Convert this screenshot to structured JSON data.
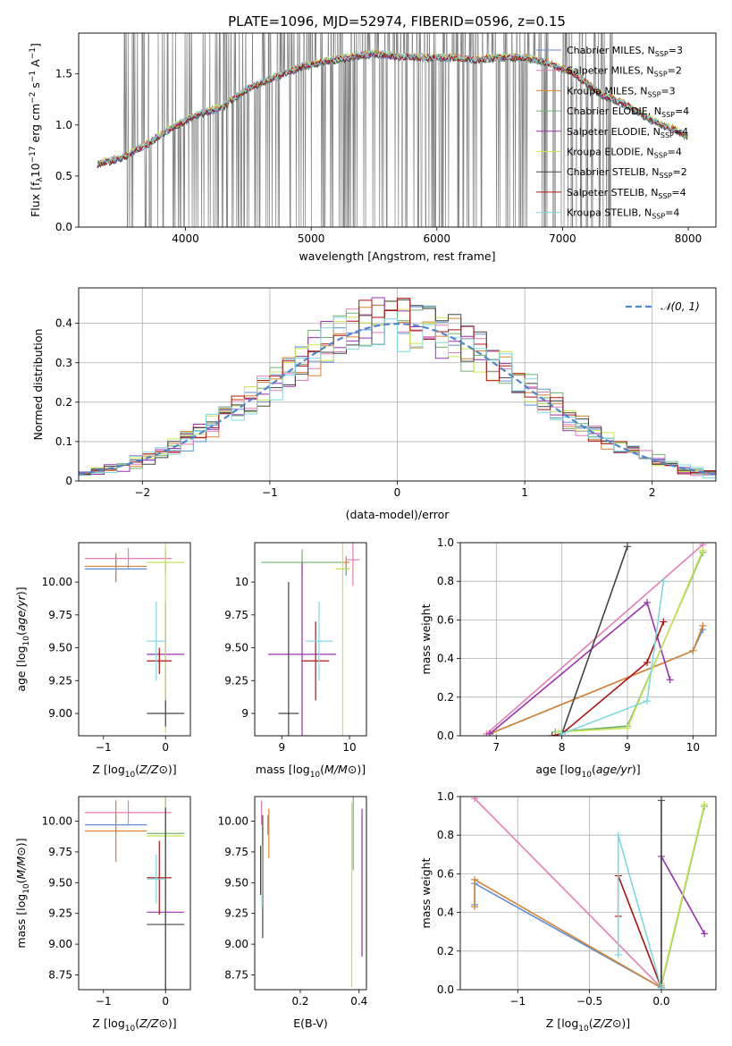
{
  "title": "PLATE=1096, MJD=52974, FIBERID=0596, z=0.15",
  "colors": {
    "series": [
      "#5b8fd8",
      "#e47db7",
      "#d98430",
      "#6fb06f",
      "#9b30b0",
      "#c7e64c",
      "#444444",
      "#b01010",
      "#7ed8e0"
    ],
    "data_gray": "#808080",
    "gaussian": "#4f86cf"
  },
  "chart_data": [
    {
      "id": "spectrum",
      "type": "line",
      "xlabel": "wavelength [Angstrom, rest frame]",
      "ylabel_parts": {
        "base": "Flux [f",
        "sub": "λ",
        "mid": "10",
        "sup1": "−17",
        "rest": " erg cm",
        "sup2": "−2",
        "rest2": " s",
        "sup3": "−1",
        "rest3": " A",
        "sup4": "−1",
        "end": "]"
      },
      "xlim": [
        3150,
        8220
      ],
      "ylim": [
        0,
        1.9
      ],
      "xticks": [
        4000,
        5000,
        6000,
        7000,
        8000
      ],
      "yticks": [
        0.0,
        0.5,
        1.0,
        1.5
      ],
      "legend": [
        {
          "label": "Chabrier MILES, N",
          "sub": "SSP",
          "tail": "=3"
        },
        {
          "label": "Salpeter MILES, N",
          "sub": "SSP",
          "tail": "=2"
        },
        {
          "label": "Kroupa MILES, N",
          "sub": "SSP",
          "tail": "=3"
        },
        {
          "label": "Chabrier ELODIE, N",
          "sub": "SSP",
          "tail": "=4"
        },
        {
          "label": "Salpeter ELODIE, N",
          "sub": "SSP",
          "tail": "=4"
        },
        {
          "label": "Kroupa ELODIE, N",
          "sub": "SSP",
          "tail": "=4"
        },
        {
          "label": "Chabrier STELIB, N",
          "sub": "SSP",
          "tail": "=2"
        },
        {
          "label": "Salpeter STELIB, N",
          "sub": "SSP",
          "tail": "=4"
        },
        {
          "label": "Kroupa STELIB, N",
          "sub": "SSP",
          "tail": "=4"
        }
      ],
      "legend_position": "upper right",
      "model_curve": {
        "x": [
          3300,
          3500,
          3700,
          3900,
          4100,
          4300,
          4500,
          4700,
          4900,
          5100,
          5300,
          5500,
          5700,
          5900,
          6100,
          6300,
          6500,
          6700,
          6900,
          7100,
          7300,
          7500,
          7700,
          7900,
          8000
        ],
        "y": [
          0.62,
          0.68,
          0.82,
          0.98,
          1.1,
          1.18,
          1.36,
          1.46,
          1.56,
          1.62,
          1.66,
          1.7,
          1.67,
          1.66,
          1.66,
          1.64,
          1.66,
          1.66,
          1.6,
          1.5,
          1.3,
          1.2,
          1.05,
          0.95,
          0.88
        ]
      }
    },
    {
      "id": "residuals",
      "type": "histogram",
      "xlabel": "(data-model)/error",
      "ylabel": "Normed distribution",
      "xlim": [
        -2.5,
        2.5
      ],
      "ylim": [
        0,
        0.49
      ],
      "xticks": [
        -2,
        -1,
        0,
        1,
        2
      ],
      "yticks": [
        0.0,
        0.1,
        0.2,
        0.3,
        0.4
      ],
      "legend": [
        {
          "label": "𝒩(0, 1)"
        }
      ],
      "legend_position": "upper right",
      "bin_width": 0.1,
      "grid": true
    },
    {
      "id": "age-vs-Z",
      "type": "errorbar",
      "xlabel": "Z [log10(Z/Z⊙)]",
      "ylabel": "age  [log10(age/yr)]",
      "xlim": [
        -1.4,
        0.4
      ],
      "ylim": [
        8.83,
        10.3
      ],
      "xticks": [
        -1,
        0
      ],
      "yticks": [
        9.0,
        9.25,
        9.5,
        9.75,
        10.0
      ],
      "points": [
        {
          "s": 0,
          "x": -0.8,
          "y": 10.1,
          "xerr": 0.5,
          "yerr": 0.1
        },
        {
          "s": 1,
          "x": -0.6,
          "y": 10.18,
          "xerr": 0.7,
          "yerr": 0.08
        },
        {
          "s": 2,
          "x": -0.8,
          "y": 10.12,
          "xerr": 0.5,
          "yerr": 0.1
        },
        {
          "s": 3,
          "x": 0.0,
          "y": 10.15,
          "xerr": 0.3,
          "yerr": 0.1
        },
        {
          "s": 4,
          "x": 0.0,
          "y": 9.45,
          "xerr": 0.3,
          "yerr": 0.4
        },
        {
          "s": 5,
          "x": 0.0,
          "y": 10.15,
          "xerr": 0.3,
          "yerr": 1.3
        },
        {
          "s": 6,
          "x": 0.0,
          "y": 9.0,
          "xerr": 0.3,
          "yerr": 0.1
        },
        {
          "s": 7,
          "x": -0.1,
          "y": 9.4,
          "xerr": 0.2,
          "yerr": 0.1
        },
        {
          "s": 8,
          "x": -0.15,
          "y": 9.55,
          "xerr": 0.15,
          "yerr": 0.3
        }
      ]
    },
    {
      "id": "age-vs-mass",
      "type": "errorbar",
      "xlabel": "mass [log10(M/M⊙)]",
      "ylabel": "",
      "xlim": [
        8.6,
        10.25
      ],
      "ylim": [
        8.83,
        10.3
      ],
      "xticks": [
        9,
        10
      ],
      "yticks": [
        9.0,
        9.25,
        9.5,
        9.75,
        10.0
      ],
      "points": [
        {
          "s": 0,
          "x": 9.95,
          "y": 10.1,
          "xerr": 0.05,
          "yerr": 0.05
        },
        {
          "s": 1,
          "x": 10.05,
          "y": 10.17,
          "xerr": 0.1,
          "yerr": 0.2
        },
        {
          "s": 2,
          "x": 9.95,
          "y": 10.15,
          "xerr": 0.05,
          "yerr": 0.05
        },
        {
          "s": 3,
          "x": 9.3,
          "y": 10.15,
          "xerr": 0.6,
          "yerr": 0.1
        },
        {
          "s": 4,
          "x": 9.3,
          "y": 9.45,
          "xerr": 0.5,
          "yerr": 0.7
        },
        {
          "s": 5,
          "x": 9.9,
          "y": 10.1,
          "xerr": 0.1,
          "yerr": 1.3
        },
        {
          "s": 6,
          "x": 9.1,
          "y": 9.0,
          "xerr": 0.15,
          "yerr": 1.0
        },
        {
          "s": 7,
          "x": 9.5,
          "y": 9.4,
          "xerr": 0.2,
          "yerr": 0.3
        },
        {
          "s": 8,
          "x": 9.55,
          "y": 9.55,
          "xerr": 0.2,
          "yerr": 0.3
        }
      ]
    },
    {
      "id": "mass-weight-vs-age",
      "type": "line",
      "xlabel": "age  [log10(age/yr)]",
      "ylabel": "mass weight",
      "xlim": [
        6.45,
        10.35
      ],
      "ylim": [
        0,
        1.0
      ],
      "xticks": [
        7,
        8,
        9,
        10
      ],
      "yticks": [
        0.0,
        0.2,
        0.4,
        0.6,
        0.8,
        1.0
      ],
      "grid": true,
      "series": [
        {
          "s": 0,
          "x": [
            6.9,
            10.0,
            10.15
          ],
          "y": [
            0.01,
            0.44,
            0.55
          ]
        },
        {
          "s": 1,
          "x": [
            6.85,
            10.15
          ],
          "y": [
            0.01,
            0.99
          ]
        },
        {
          "s": 2,
          "x": [
            6.9,
            10.0,
            10.15
          ],
          "y": [
            0.01,
            0.44,
            0.57
          ]
        },
        {
          "s": 3,
          "x": [
            7.9,
            9.0,
            10.15
          ],
          "y": [
            0.02,
            0.05,
            0.95
          ]
        },
        {
          "s": 4,
          "x": [
            6.9,
            9.3,
            9.65
          ],
          "y": [
            0.01,
            0.69,
            0.29
          ]
        },
        {
          "s": 5,
          "x": [
            7.95,
            9.0,
            10.15
          ],
          "y": [
            0.02,
            0.04,
            0.96
          ]
        },
        {
          "s": 6,
          "x": [
            8.0,
            9.0
          ],
          "y": [
            0.01,
            0.98
          ]
        },
        {
          "s": 7,
          "x": [
            7.85,
            8.0,
            9.3,
            9.55
          ],
          "y": [
            0.0,
            0.01,
            0.38,
            0.59
          ]
        },
        {
          "s": 8,
          "x": [
            8.0,
            9.3,
            9.55
          ],
          "y": [
            0.01,
            0.18,
            0.8
          ]
        }
      ]
    },
    {
      "id": "mass-vs-Z",
      "type": "errorbar",
      "xlabel": "Z [log10(Z/Z⊙)]",
      "ylabel": "mass [log10(M/M⊙)]",
      "xlim": [
        -1.4,
        0.4
      ],
      "ylim": [
        8.63,
        10.2
      ],
      "xticks": [
        -1,
        0
      ],
      "yticks": [
        8.75,
        9.0,
        9.25,
        9.5,
        9.75,
        10.0
      ],
      "points": [
        {
          "s": 0,
          "x": -0.8,
          "y": 9.97,
          "xerr": 0.5,
          "yerr": 0.08
        },
        {
          "s": 1,
          "x": -0.6,
          "y": 10.07,
          "xerr": 0.7,
          "yerr": 0.1
        },
        {
          "s": 2,
          "x": -0.8,
          "y": 9.92,
          "xerr": 0.5,
          "yerr": 0.25
        },
        {
          "s": 3,
          "x": 0.0,
          "y": 9.9,
          "xerr": 0.3,
          "yerr": 0.3
        },
        {
          "s": 4,
          "x": 0.0,
          "y": 9.26,
          "xerr": 0.3,
          "yerr": 0.95
        },
        {
          "s": 5,
          "x": 0.0,
          "y": 9.88,
          "xerr": 0.3,
          "yerr": 1.2
        },
        {
          "s": 6,
          "x": 0.0,
          "y": 9.16,
          "xerr": 0.3,
          "yerr": 0.95
        },
        {
          "s": 7,
          "x": -0.1,
          "y": 9.54,
          "xerr": 0.2,
          "yerr": 0.3
        },
        {
          "s": 8,
          "x": -0.15,
          "y": 9.53,
          "xerr": 0.15,
          "yerr": 0.2
        }
      ]
    },
    {
      "id": "mass-vs-EBV",
      "type": "errorbar",
      "xlabel": "E(B-V)",
      "ylabel": "",
      "xlim": [
        0.045,
        0.425
      ],
      "ylim": [
        8.63,
        10.2
      ],
      "xticks": [
        0.2,
        0.4
      ],
      "yticks": [
        8.75,
        9.0,
        9.25,
        9.5,
        9.75,
        10.0
      ],
      "points": [
        {
          "s": 0,
          "x": 0.09,
          "y": 9.97,
          "xerr": 0.0,
          "yerr": 0.08
        },
        {
          "s": 1,
          "x": 0.068,
          "y": 10.07,
          "xerr": 0.0,
          "yerr": 0.1
        },
        {
          "s": 2,
          "x": 0.093,
          "y": 9.9,
          "xerr": 0.0,
          "yerr": 0.2
        },
        {
          "s": 3,
          "x": 0.38,
          "y": 9.9,
          "xerr": 0.0,
          "yerr": 0.3
        },
        {
          "s": 4,
          "x": 0.41,
          "y": 9.5,
          "xerr": 0.0,
          "yerr": 0.6
        },
        {
          "s": 5,
          "x": 0.375,
          "y": 9.4,
          "xerr": 0.0,
          "yerr": 0.75
        },
        {
          "s": 6,
          "x": 0.072,
          "y": 9.55,
          "xerr": 0.0,
          "yerr": 0.5
        },
        {
          "s": 7,
          "x": 0.065,
          "y": 9.6,
          "xerr": 0.0,
          "yerr": 0.2
        },
        {
          "s": 8,
          "x": 0.07,
          "y": 9.55,
          "xerr": 0.0,
          "yerr": 0.25
        }
      ]
    },
    {
      "id": "mass-weight-vs-Z",
      "type": "line",
      "xlabel": "Z [log10(Z/Z⊙)]",
      "ylabel": "mass weight",
      "xlim": [
        -1.4,
        0.38
      ],
      "ylim": [
        0,
        1.0
      ],
      "xticks": [
        -1.0,
        -0.5,
        0.0
      ],
      "yticks": [
        0.0,
        0.2,
        0.4,
        0.6,
        0.8,
        1.0
      ],
      "grid": true,
      "series": [
        {
          "s": 0,
          "x": [
            -1.3,
            -1.3,
            0.0
          ],
          "y": [
            0.44,
            0.55,
            0.01
          ]
        },
        {
          "s": 1,
          "x": [
            -1.3,
            0.0
          ],
          "y": [
            0.99,
            0.01
          ]
        },
        {
          "s": 2,
          "x": [
            -1.3,
            -1.3,
            0.0
          ],
          "y": [
            0.43,
            0.57,
            0.01
          ]
        },
        {
          "s": 3,
          "x": [
            0.0,
            0.3
          ],
          "y": [
            0.02,
            0.95
          ]
        },
        {
          "s": 4,
          "x": [
            0.0,
            0.0,
            0.3
          ],
          "y": [
            0.01,
            0.69,
            0.29
          ]
        },
        {
          "s": 5,
          "x": [
            0.0,
            0.3
          ],
          "y": [
            0.03,
            0.96
          ]
        },
        {
          "s": 6,
          "x": [
            0.0,
            0.0
          ],
          "y": [
            0.01,
            0.98
          ]
        },
        {
          "s": 7,
          "x": [
            -0.3,
            -0.3,
            0.0
          ],
          "y": [
            0.38,
            0.59,
            0.01
          ]
        },
        {
          "s": 8,
          "x": [
            -0.3,
            -0.3,
            0.0
          ],
          "y": [
            0.18,
            0.8,
            0.01
          ]
        }
      ]
    }
  ]
}
